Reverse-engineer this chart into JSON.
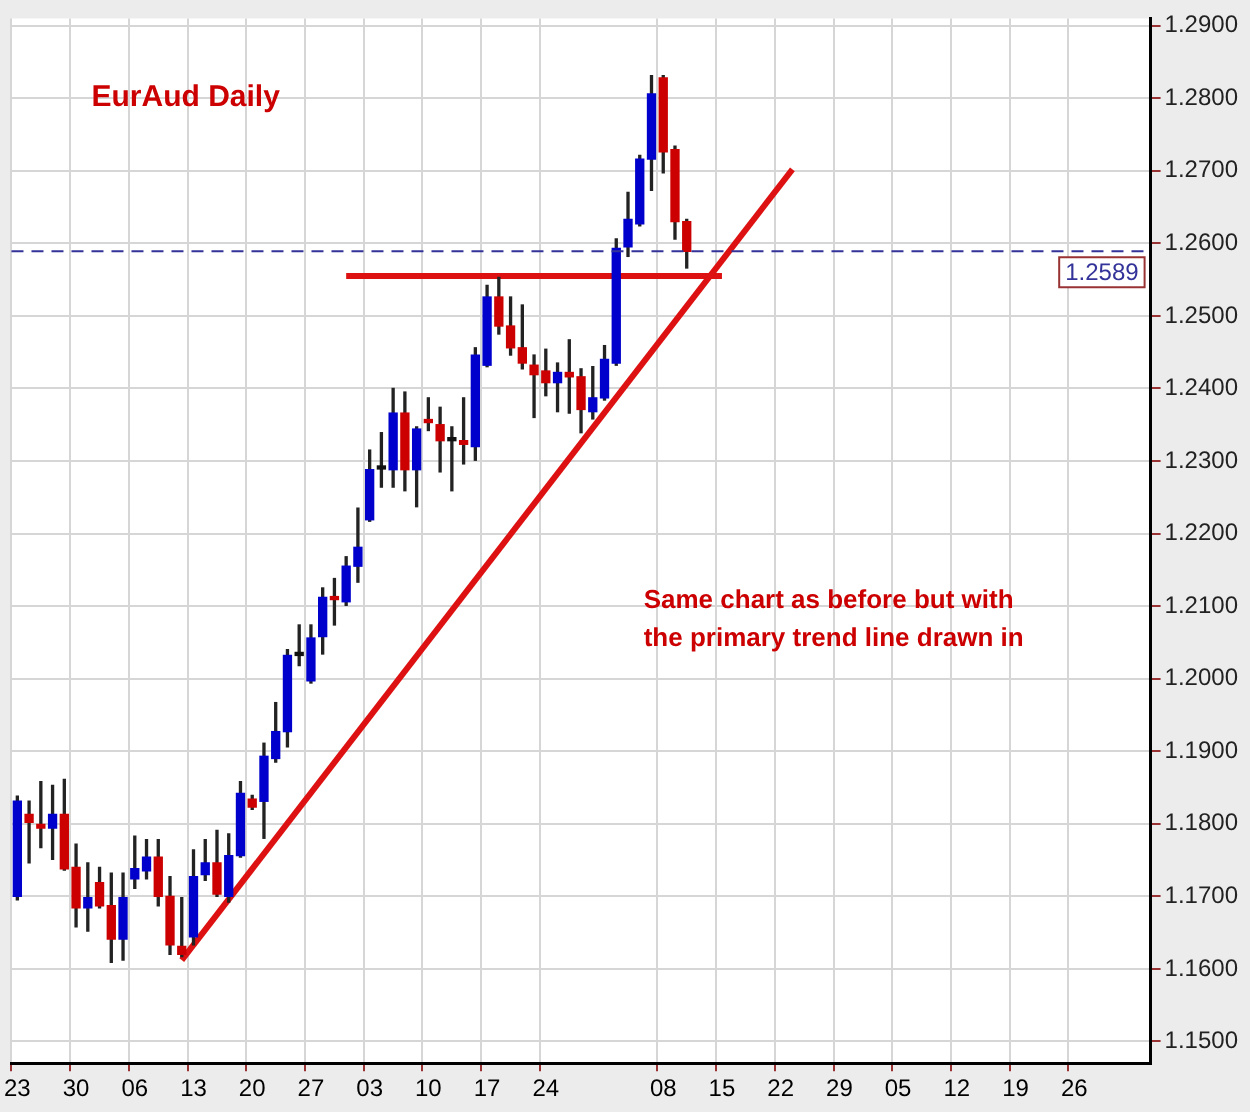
{
  "chart_data": {
    "type": "candlestick",
    "title": "EurAud Daily",
    "categories": [
      "23",
      null,
      null,
      null,
      null,
      "30",
      null,
      null,
      null,
      null,
      "06",
      null,
      null,
      null,
      null,
      "13",
      null,
      null,
      null,
      null,
      "20",
      null,
      null,
      null,
      null,
      "27",
      null,
      null,
      null,
      null,
      "03",
      null,
      null,
      null,
      null,
      "10",
      null,
      null,
      null,
      null,
      "17",
      null,
      null,
      null,
      null,
      "24",
      null,
      null,
      null,
      null,
      null,
      null,
      null,
      null,
      null,
      "08",
      null,
      null,
      null,
      null,
      "15",
      null,
      null,
      null,
      null,
      "22",
      null,
      null,
      null,
      null,
      "29",
      null,
      null,
      null,
      null,
      "05",
      null,
      null,
      null,
      null,
      "12",
      null,
      null,
      null,
      null,
      "19",
      null,
      null,
      null,
      null,
      "26",
      null,
      null,
      null,
      null,
      null,
      null
    ],
    "ohlc": [
      [
        1.17,
        1.1838,
        1.1695,
        1.1831
      ],
      [
        1.1813,
        1.1831,
        1.1746,
        1.1802
      ],
      [
        1.1799,
        1.1858,
        1.1767,
        1.1794
      ],
      [
        1.1794,
        1.1853,
        1.1751,
        1.1813
      ],
      [
        1.1813,
        1.1861,
        1.1736,
        1.1738
      ],
      [
        1.174,
        1.1772,
        1.1658,
        1.1684
      ],
      [
        1.1684,
        1.1746,
        1.1652,
        1.1698
      ],
      [
        1.1719,
        1.174,
        1.1684,
        1.1687
      ],
      [
        1.1687,
        1.1732,
        1.1609,
        1.1641
      ],
      [
        1.1641,
        1.1732,
        1.1612,
        1.1698
      ],
      [
        1.1724,
        1.1783,
        1.1711,
        1.1738
      ],
      [
        1.1735,
        1.1778,
        1.1724,
        1.1754
      ],
      [
        1.1754,
        1.1778,
        1.1687,
        1.17
      ],
      [
        1.17,
        1.1727,
        1.162,
        1.1633
      ],
      [
        1.1631,
        1.1698,
        1.1617,
        1.162
      ],
      [
        1.1644,
        1.1764,
        1.1633,
        1.1727
      ],
      [
        1.173,
        1.1778,
        1.1722,
        1.1746
      ],
      [
        1.1746,
        1.1791,
        1.17,
        1.1703
      ],
      [
        1.17,
        1.1786,
        1.1692,
        1.1756
      ],
      [
        1.1756,
        1.1858,
        1.1754,
        1.1842
      ],
      [
        1.1834,
        1.1839,
        1.182,
        1.1823
      ],
      [
        1.1831,
        1.1911,
        1.178,
        1.1893
      ],
      [
        1.189,
        1.1967,
        1.1885,
        1.1927
      ],
      [
        1.1927,
        1.204,
        1.1906,
        1.2032
      ],
      [
        1.2032,
        1.2074,
        1.2018,
        1.2032
      ],
      [
        1.1997,
        1.2074,
        1.1994,
        1.2056
      ],
      [
        1.2058,
        1.2125,
        1.2034,
        1.2112
      ],
      [
        1.2113,
        1.2138,
        1.2074,
        1.2109
      ],
      [
        1.2106,
        1.2168,
        1.2101,
        1.2155
      ],
      [
        1.2155,
        1.2235,
        1.2133,
        1.2181
      ],
      [
        1.2219,
        1.2315,
        1.2217,
        1.2288
      ],
      [
        1.2289,
        1.2339,
        1.2264,
        1.2289
      ],
      [
        1.2288,
        1.24,
        1.2264,
        1.2366
      ],
      [
        1.2366,
        1.2395,
        1.2259,
        1.2288
      ],
      [
        1.2288,
        1.2347,
        1.2237,
        1.2344
      ],
      [
        1.2357,
        1.2387,
        1.2342,
        1.2353
      ],
      [
        1.235,
        1.2374,
        1.2285,
        1.2328
      ],
      [
        1.2328,
        1.2347,
        1.2259,
        1.2328
      ],
      [
        1.2328,
        1.2387,
        1.2296,
        1.2323
      ],
      [
        1.232,
        1.2456,
        1.2301,
        1.2446
      ],
      [
        1.2432,
        1.2542,
        1.243,
        1.2526
      ],
      [
        1.2526,
        1.2553,
        1.2475,
        1.2486
      ],
      [
        1.2486,
        1.2526,
        1.2446,
        1.2456
      ],
      [
        1.2456,
        1.2515,
        1.2427,
        1.2435
      ],
      [
        1.2432,
        1.2446,
        1.236,
        1.2419
      ],
      [
        1.2424,
        1.2454,
        1.239,
        1.2408
      ],
      [
        1.2408,
        1.2435,
        1.2368,
        1.2422
      ],
      [
        1.2422,
        1.2467,
        1.2366,
        1.2416
      ],
      [
        1.2416,
        1.2427,
        1.2339,
        1.2371
      ],
      [
        1.2368,
        1.243,
        1.2358,
        1.2387
      ],
      [
        1.2387,
        1.2459,
        1.2384,
        1.244
      ],
      [
        1.2435,
        1.2606,
        1.2432,
        1.2593
      ],
      [
        1.2595,
        1.267,
        1.2582,
        1.2633
      ],
      [
        1.2627,
        1.2721,
        1.2624,
        1.2716
      ],
      [
        1.2716,
        1.2831,
        1.2673,
        1.2806
      ],
      [
        1.2828,
        1.2831,
        1.2697,
        1.2726
      ],
      [
        1.2729,
        1.2734,
        1.2606,
        1.263
      ],
      [
        1.263,
        1.2633,
        1.2566,
        1.2589
      ],
      null,
      null,
      null,
      null,
      null,
      null,
      null,
      null,
      null,
      null,
      null,
      null,
      null,
      null,
      null,
      null,
      null,
      null,
      null,
      null,
      null,
      null,
      null,
      null,
      null,
      null,
      null,
      null,
      null,
      null,
      null,
      null,
      null,
      null,
      null,
      null,
      null,
      null,
      null
    ],
    "series": [
      {
        "type": "line",
        "color": "#dd1111",
        "values": [
          null,
          null,
          null,
          null,
          null,
          null,
          null,
          null,
          null,
          null,
          null,
          null,
          null,
          null,
          1.1612,
          null,
          null,
          null,
          null,
          null,
          null,
          null,
          null,
          null,
          null,
          null,
          null,
          null,
          null,
          null,
          null,
          null,
          null,
          null,
          null,
          null,
          null,
          null,
          null,
          null,
          null,
          null,
          null,
          null,
          null,
          null,
          null,
          null,
          null,
          null,
          null,
          null,
          null,
          null,
          null,
          null,
          null,
          null,
          null,
          null,
          null,
          null,
          null,
          null,
          null,
          null,
          1.2702,
          null,
          null,
          null,
          null,
          null,
          null,
          null,
          null,
          null,
          null,
          null,
          null,
          null,
          null,
          null,
          null,
          null,
          null,
          null,
          null,
          null,
          null,
          null,
          null,
          null,
          null,
          null,
          null,
          null,
          null
        ]
      },
      {
        "type": "line",
        "color": "#dd1111",
        "values": [
          null,
          null,
          null,
          null,
          null,
          null,
          null,
          null,
          null,
          null,
          null,
          null,
          null,
          null,
          null,
          null,
          null,
          null,
          null,
          null,
          null,
          null,
          null,
          null,
          null,
          null,
          null,
          null,
          1.2555,
          null,
          null,
          null,
          null,
          null,
          null,
          null,
          null,
          null,
          null,
          null,
          null,
          null,
          null,
          null,
          null,
          null,
          null,
          null,
          null,
          null,
          null,
          null,
          null,
          null,
          null,
          null,
          null,
          null,
          null,
          null,
          1.2555,
          null,
          null,
          null,
          null,
          null,
          null,
          null,
          null,
          null,
          null,
          null,
          null,
          null,
          null,
          null,
          null,
          null,
          null,
          null,
          null,
          null,
          null,
          null,
          null,
          null,
          null,
          null,
          null,
          null,
          null,
          null,
          null,
          null,
          null,
          null,
          null
        ]
      }
    ],
    "ylim": [
      1.147,
      1.291
    ],
    "yticks": [
      {
        "value": 1.15,
        "label": "1.1500"
      },
      {
        "value": 1.16,
        "label": "1.1600"
      },
      {
        "value": 1.17,
        "label": "1.1700"
      },
      {
        "value": 1.18,
        "label": "1.1800"
      },
      {
        "value": 1.19,
        "label": "1.1900"
      },
      {
        "value": 1.2,
        "label": "1.2000"
      },
      {
        "value": 1.21,
        "label": "1.2100"
      },
      {
        "value": 1.22,
        "label": "1.2200"
      },
      {
        "value": 1.23,
        "label": "1.2300"
      },
      {
        "value": 1.24,
        "label": "1.2400"
      },
      {
        "value": 1.25,
        "label": "1.2500"
      },
      {
        "value": 1.26,
        "label": "1.2600"
      },
      {
        "value": 1.27,
        "label": "1.2700"
      },
      {
        "value": 1.28,
        "label": "1.2800"
      },
      {
        "value": 1.29,
        "label": "1.2900"
      }
    ],
    "grid": true,
    "legend": false,
    "ref_lines": [
      {
        "axis": "y",
        "value": 1.2589,
        "label": "1.2589",
        "color": "#333399",
        "line_style": "dashed"
      }
    ],
    "annotations": [
      "Same chart as before but with the primary trend line drawn in"
    ]
  }
}
